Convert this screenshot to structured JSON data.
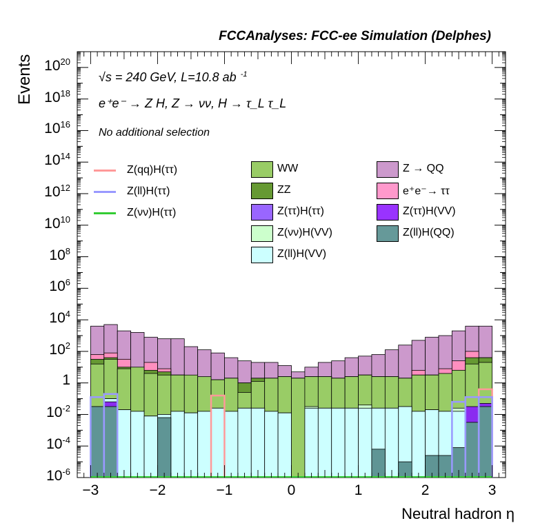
{
  "title": "FCCAnalyses: FCC-ee Simulation (Delphes)",
  "annotations": {
    "energy": "√s = 240 GeV, L=10.8 ab",
    "energy_exp": "-1",
    "process": "e⁺e⁻ → Z H, Z → νν, H → τ_L τ_L",
    "selection": "No additional selection"
  },
  "chart_data": {
    "type": "area",
    "stacked": true,
    "log_y": true,
    "xlabel": "Neutral hadron η",
    "ylabel": "Events",
    "xlim": [
      -3.2,
      3.2
    ],
    "ylim_log10": [
      -6,
      21
    ],
    "x_ticks": [
      "−3",
      "−2",
      "−1",
      "0",
      "1",
      "2",
      "3"
    ],
    "y_ticks": [
      {
        "base": "10",
        "exp": "20"
      },
      {
        "base": "10",
        "exp": "18"
      },
      {
        "base": "10",
        "exp": "16"
      },
      {
        "base": "10",
        "exp": "14"
      },
      {
        "base": "10",
        "exp": "12"
      },
      {
        "base": "10",
        "exp": "10"
      },
      {
        "base": "10",
        "exp": "8"
      },
      {
        "base": "10",
        "exp": "6"
      },
      {
        "base": "10",
        "exp": "4"
      },
      {
        "base": "10",
        "exp": "2"
      },
      {
        "base": "1",
        "exp": ""
      },
      {
        "base": "10",
        "exp": "-2"
      },
      {
        "base": "10",
        "exp": "-4"
      },
      {
        "base": "10",
        "exp": "-6"
      }
    ],
    "bin_edges": [
      -3.0,
      -2.8,
      -2.6,
      -2.4,
      -2.2,
      -2.0,
      -1.8,
      -1.6,
      -1.4,
      -1.2,
      -1.0,
      -0.8,
      -0.6,
      -0.4,
      -0.2,
      0.0,
      0.2,
      0.4,
      0.6,
      0.8,
      1.0,
      1.2,
      1.4,
      1.6,
      1.8,
      2.0,
      2.2,
      2.4,
      2.6,
      2.8,
      3.0
    ],
    "stack_log10": [
      {
        "name": "Z(ll)H(QQ)",
        "color": "#5f9595",
        "values": [
          -1.5,
          -1.5,
          null,
          null,
          null,
          -2.2,
          null,
          null,
          null,
          null,
          null,
          null,
          null,
          null,
          null,
          null,
          null,
          null,
          null,
          null,
          null,
          -4.2,
          null,
          -5.0,
          null,
          -4.6,
          -4.6,
          -4.1,
          -2.5,
          -1.5
        ]
      },
      {
        "name": "Z(ττ)H(VV)",
        "color": "#8a2cf0",
        "values": [
          -1.5,
          -1.2,
          null,
          null,
          null,
          null,
          null,
          null,
          null,
          null,
          null,
          null,
          null,
          null,
          null,
          null,
          null,
          null,
          null,
          null,
          null,
          null,
          null,
          null,
          null,
          null,
          null,
          null,
          -1.5,
          -1.3
        ]
      },
      {
        "name": "Z(ll)H(VV)",
        "color": "#ccffff",
        "values": [
          -1.5,
          -1.0,
          -1.7,
          -1.8,
          -2.1,
          -2.0,
          -1.8,
          -1.9,
          -1.8,
          -1.6,
          -1.8,
          -1.6,
          -1.6,
          -1.8,
          -1.9,
          -6.0,
          -1.6,
          -1.6,
          -1.6,
          -1.6,
          -1.6,
          -1.6,
          -1.6,
          -1.5,
          -1.8,
          -1.7,
          -1.8,
          -1.8,
          -1.8,
          -1.5
        ]
      },
      {
        "name": "Z(νν)H(VV)",
        "color": "#ccfccc",
        "values": [
          -1.5,
          -1.0,
          -1.7,
          -1.8,
          -2.1,
          -2.0,
          -1.8,
          -1.9,
          -1.8,
          -1.6,
          -1.8,
          -1.6,
          -1.6,
          -1.8,
          -1.9,
          -6.0,
          -1.5,
          -1.6,
          -1.6,
          -1.6,
          -1.4,
          -1.6,
          -1.6,
          -1.5,
          -1.8,
          -1.7,
          -1.8,
          -1.6,
          -1.6,
          -1.3
        ]
      },
      {
        "name": "WW",
        "color": "#99cc66",
        "values": [
          1.2,
          1.5,
          0.9,
          1.0,
          0.6,
          0.5,
          0.5,
          0.5,
          0.4,
          0.2,
          0.3,
          -0.6,
          0.1,
          0.3,
          0.4,
          0.3,
          0.4,
          0.4,
          0.3,
          0.4,
          0.5,
          0.4,
          0.4,
          0.3,
          0.5,
          0.5,
          0.6,
          0.8,
          1.2,
          1.3
        ]
      },
      {
        "name": "ZZ",
        "color": "#669933",
        "values": [
          1.5,
          1.6,
          1.0,
          0.5,
          0.8,
          0.7,
          0.5,
          0.4,
          0.3,
          0.2,
          0.3,
          0.0,
          0.3,
          0.3,
          0.4,
          0.3,
          0.4,
          0.4,
          0.3,
          0.4,
          0.5,
          0.4,
          0.4,
          0.3,
          0.5,
          0.5,
          0.6,
          0.8,
          1.6,
          1.6
        ]
      },
      {
        "name": "e⁺e⁻→ ττ",
        "color": "#ff8fbf",
        "values": [
          1.8,
          1.9,
          1.5,
          0.5,
          1.3,
          0.9,
          0.5,
          0.4,
          0.3,
          0.2,
          0.3,
          0.0,
          0.3,
          0.3,
          0.4,
          0.3,
          0.4,
          0.4,
          0.3,
          0.4,
          0.5,
          0.4,
          0.4,
          0.3,
          0.8,
          0.5,
          0.9,
          1.4,
          2.0,
          1.6
        ]
      },
      {
        "name": "Z → QQ",
        "color": "#cc99cc",
        "values": [
          3.6,
          3.7,
          3.3,
          3.2,
          2.9,
          2.8,
          2.8,
          2.3,
          2.1,
          1.9,
          1.6,
          1.4,
          1.3,
          1.3,
          1.1,
          0.7,
          1.0,
          1.3,
          1.4,
          1.6,
          1.7,
          1.8,
          2.1,
          2.4,
          2.7,
          2.9,
          3.0,
          3.3,
          3.6,
          3.6
        ]
      }
    ],
    "signal_log10": [
      {
        "name": "Z(qq)H(ττ)",
        "color": "#ff9999",
        "values": [
          null,
          null,
          null,
          null,
          null,
          null,
          null,
          null,
          null,
          -0.8,
          null,
          null,
          null,
          null,
          null,
          null,
          null,
          null,
          null,
          null,
          null,
          null,
          null,
          null,
          null,
          null,
          null,
          null,
          null,
          -0.4
        ]
      },
      {
        "name": "Z(ll)H(ττ)",
        "color": "#9999ff",
        "values": [
          -0.9,
          -0.7,
          null,
          null,
          null,
          null,
          null,
          null,
          null,
          null,
          null,
          null,
          null,
          null,
          null,
          null,
          null,
          null,
          null,
          null,
          null,
          null,
          null,
          null,
          null,
          null,
          null,
          -1.2,
          -0.9,
          -0.9
        ]
      },
      {
        "name": "Z(νν)H(ττ)",
        "color": "#33cc33",
        "values": []
      }
    ],
    "legend": {
      "lines": [
        "Z(qq)H(ττ)",
        "Z(ll)H(ττ)",
        "Z(νν)H(ττ)"
      ],
      "boxes_col1": [
        "WW",
        "ZZ",
        "Z(ττ)H(ττ)",
        "Z(νν)H(VV)",
        "Z(ll)H(VV)"
      ],
      "boxes_col2": [
        "Z → QQ",
        "e⁺e⁻→ ττ",
        "Z(ττ)H(VV)",
        "Z(ll)H(QQ)"
      ]
    },
    "legend_colors": {
      "Z(qq)H(ττ)": "#ff9999",
      "Z(ll)H(ττ)": "#9999ff",
      "Z(νν)H(ττ)": "#33cc33",
      "WW": "#99cc66",
      "ZZ": "#669933",
      "Z(ττ)H(ττ)": "#9966ff",
      "Z(νν)H(VV)": "#ccffcc",
      "Z(ll)H(VV)": "#ccffff",
      "Z → QQ": "#cc99cc",
      "e⁺e⁻→ ττ": "#ff99cc",
      "Z(ττ)H(VV)": "#9933ff",
      "Z(ll)H(QQ)": "#669999"
    }
  }
}
